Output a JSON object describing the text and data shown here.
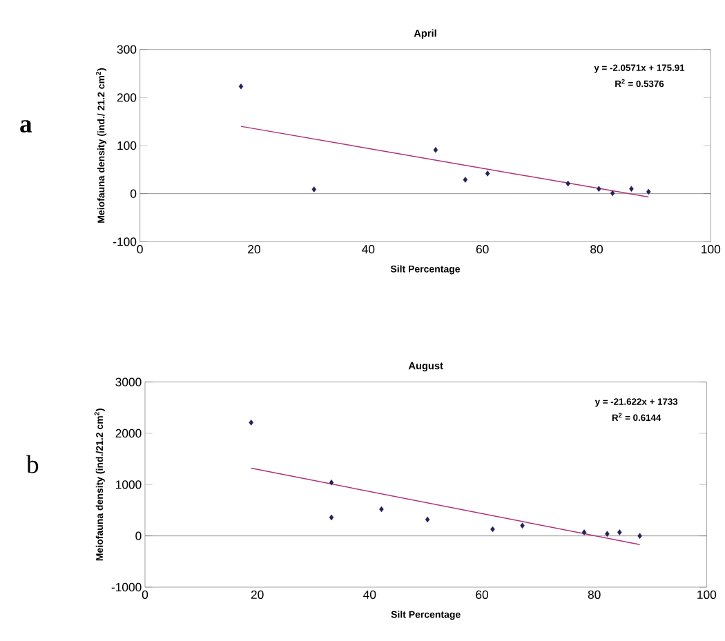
{
  "chart_data": [
    {
      "type": "scatter",
      "title": "April",
      "xlabel": "Silt Percentage",
      "ylabel": "Meiofauna density (ind./ 21.2 cm$^{2}$)",
      "annotations": [
        "a",
        "y = -2.0571x + 175.91",
        "R$^{2}$ = 0.5376"
      ],
      "xlim": [
        0,
        100
      ],
      "ylim": [
        -100,
        300
      ],
      "xticks": [
        0,
        20,
        40,
        60,
        80,
        100
      ],
      "yticks": [
        -100,
        0,
        100,
        200,
        300
      ],
      "ref_lines": [
        {
          "axis": "y",
          "value": 0
        }
      ],
      "series": [
        {
          "color": "#22225a",
          "marker": "diamond",
          "x": [
            17.7,
            30.5,
            51.8,
            57,
            60.9,
            75,
            80.4,
            82.8,
            86.1,
            89.1
          ],
          "values": [
            223,
            9,
            91,
            29,
            42,
            21,
            10,
            1,
            10,
            4
          ]
        },
        {
          "type": "line",
          "color": "#b0307a",
          "x": [
            17.7,
            89.1
          ],
          "values": [
            140,
            -7
          ]
        }
      ]
    },
    {
      "type": "scatter",
      "title": "August",
      "xlabel": "Silt Percentage",
      "ylabel": "Meiofauna density (ind./21.2 cm$^{2}$)",
      "annotations": [
        "b",
        "y = -21.622x + 1733",
        "R$^{2}$ = 0.6144"
      ],
      "xlim": [
        0,
        100
      ],
      "ylim": [
        -1000,
        3000
      ],
      "xticks": [
        0,
        20,
        40,
        60,
        80,
        100
      ],
      "yticks": [
        -1000,
        0,
        1000,
        2000,
        3000
      ],
      "ref_lines": [
        {
          "axis": "y",
          "value": 0
        }
      ],
      "series": [
        {
          "color": "#22225a",
          "marker": "diamond",
          "x": [
            18.9,
            33.2,
            33.2,
            42.1,
            50.3,
            61.9,
            67.2,
            78.2,
            82.3,
            84.5,
            88.1
          ],
          "values": [
            2210,
            1040,
            360,
            520,
            320,
            130,
            200,
            70,
            40,
            70,
            0
          ]
        },
        {
          "type": "line",
          "color": "#b0307a",
          "x": [
            18.9,
            88.1
          ],
          "values": [
            1320,
            -170
          ]
        }
      ]
    }
  ]
}
